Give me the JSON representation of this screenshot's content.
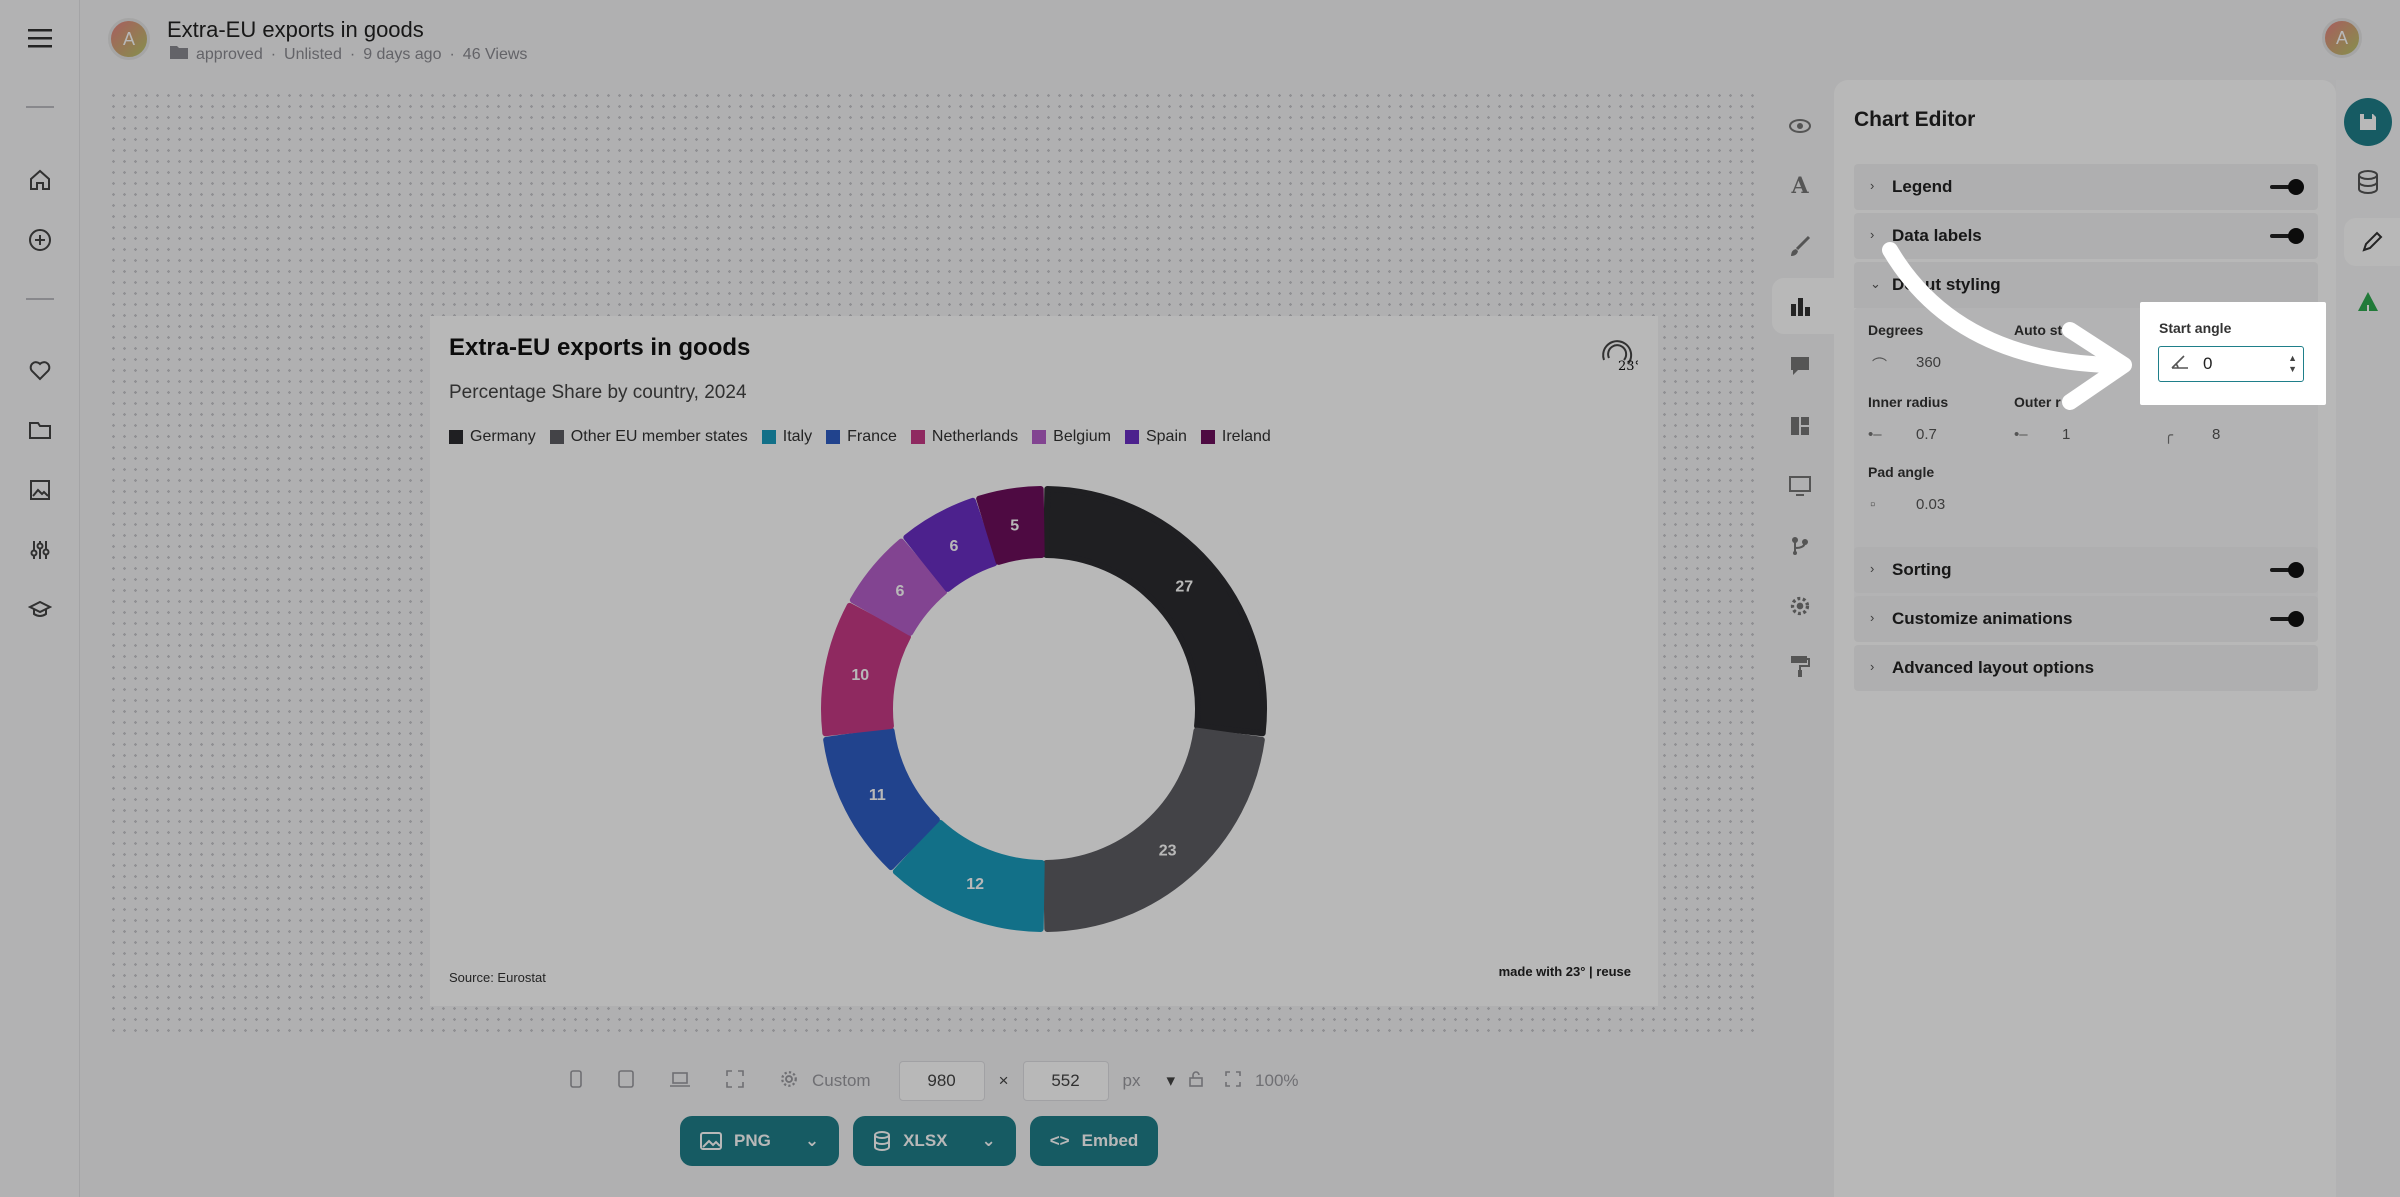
{
  "header": {
    "avatar_letter": "A",
    "title": "Extra-EU exports in goods",
    "folder": "approved",
    "visibility": "Unlisted",
    "updated": "9 days ago",
    "views": "46 Views",
    "user_avatar_letter": "A"
  },
  "chart": {
    "title": "Extra-EU exports in goods",
    "subtitle": "Percentage Share by country, 2024",
    "source": "Source: Eurostat",
    "credit": "made with 23° | reuse",
    "logo": "23°"
  },
  "chart_data": {
    "type": "pie",
    "title": "Extra-EU exports in goods",
    "subtitle": "Percentage Share by country, 2024",
    "categories": [
      "Germany",
      "Other EU member states",
      "Italy",
      "France",
      "Netherlands",
      "Belgium",
      "Spain",
      "Ireland"
    ],
    "values": [
      27,
      23,
      12,
      11,
      10,
      6,
      6,
      5
    ],
    "colors": [
      "#2b2b30",
      "#5e5e63",
      "#1a9bbd",
      "#2f5ec4",
      "#c63a86",
      "#b45fc9",
      "#6a2fc4",
      "#6d0f5c"
    ],
    "legend": "top-left",
    "inner_radius": 0.7,
    "pad_angle": 0.03
  },
  "toolbar": {
    "preset": "Custom",
    "width": "980",
    "height": "552",
    "unit": "px",
    "zoom": "100%",
    "png": "PNG",
    "xlsx": "XLSX",
    "embed": "Embed"
  },
  "editor": {
    "title": "Chart Editor",
    "sections": {
      "legend": "Legend",
      "data_labels": "Data labels",
      "donut_styling": "Donut styling",
      "sorting": "Sorting",
      "animations": "Customize animations",
      "advanced": "Advanced layout options"
    },
    "fields": {
      "degrees_label": "Degrees",
      "degrees_value": "360",
      "auto_label": "Auto st",
      "start_label": "Start angle",
      "start_value": "0",
      "inner_label": "Inner radius",
      "inner_value": "0.7",
      "outer_label": "Outer r",
      "outer_value": "1",
      "corner_value": "8",
      "pad_label": "Pad angle",
      "pad_value": "0.03"
    }
  },
  "colors": {
    "accent": "#1f7f8a",
    "green": "#2eaa4f"
  }
}
